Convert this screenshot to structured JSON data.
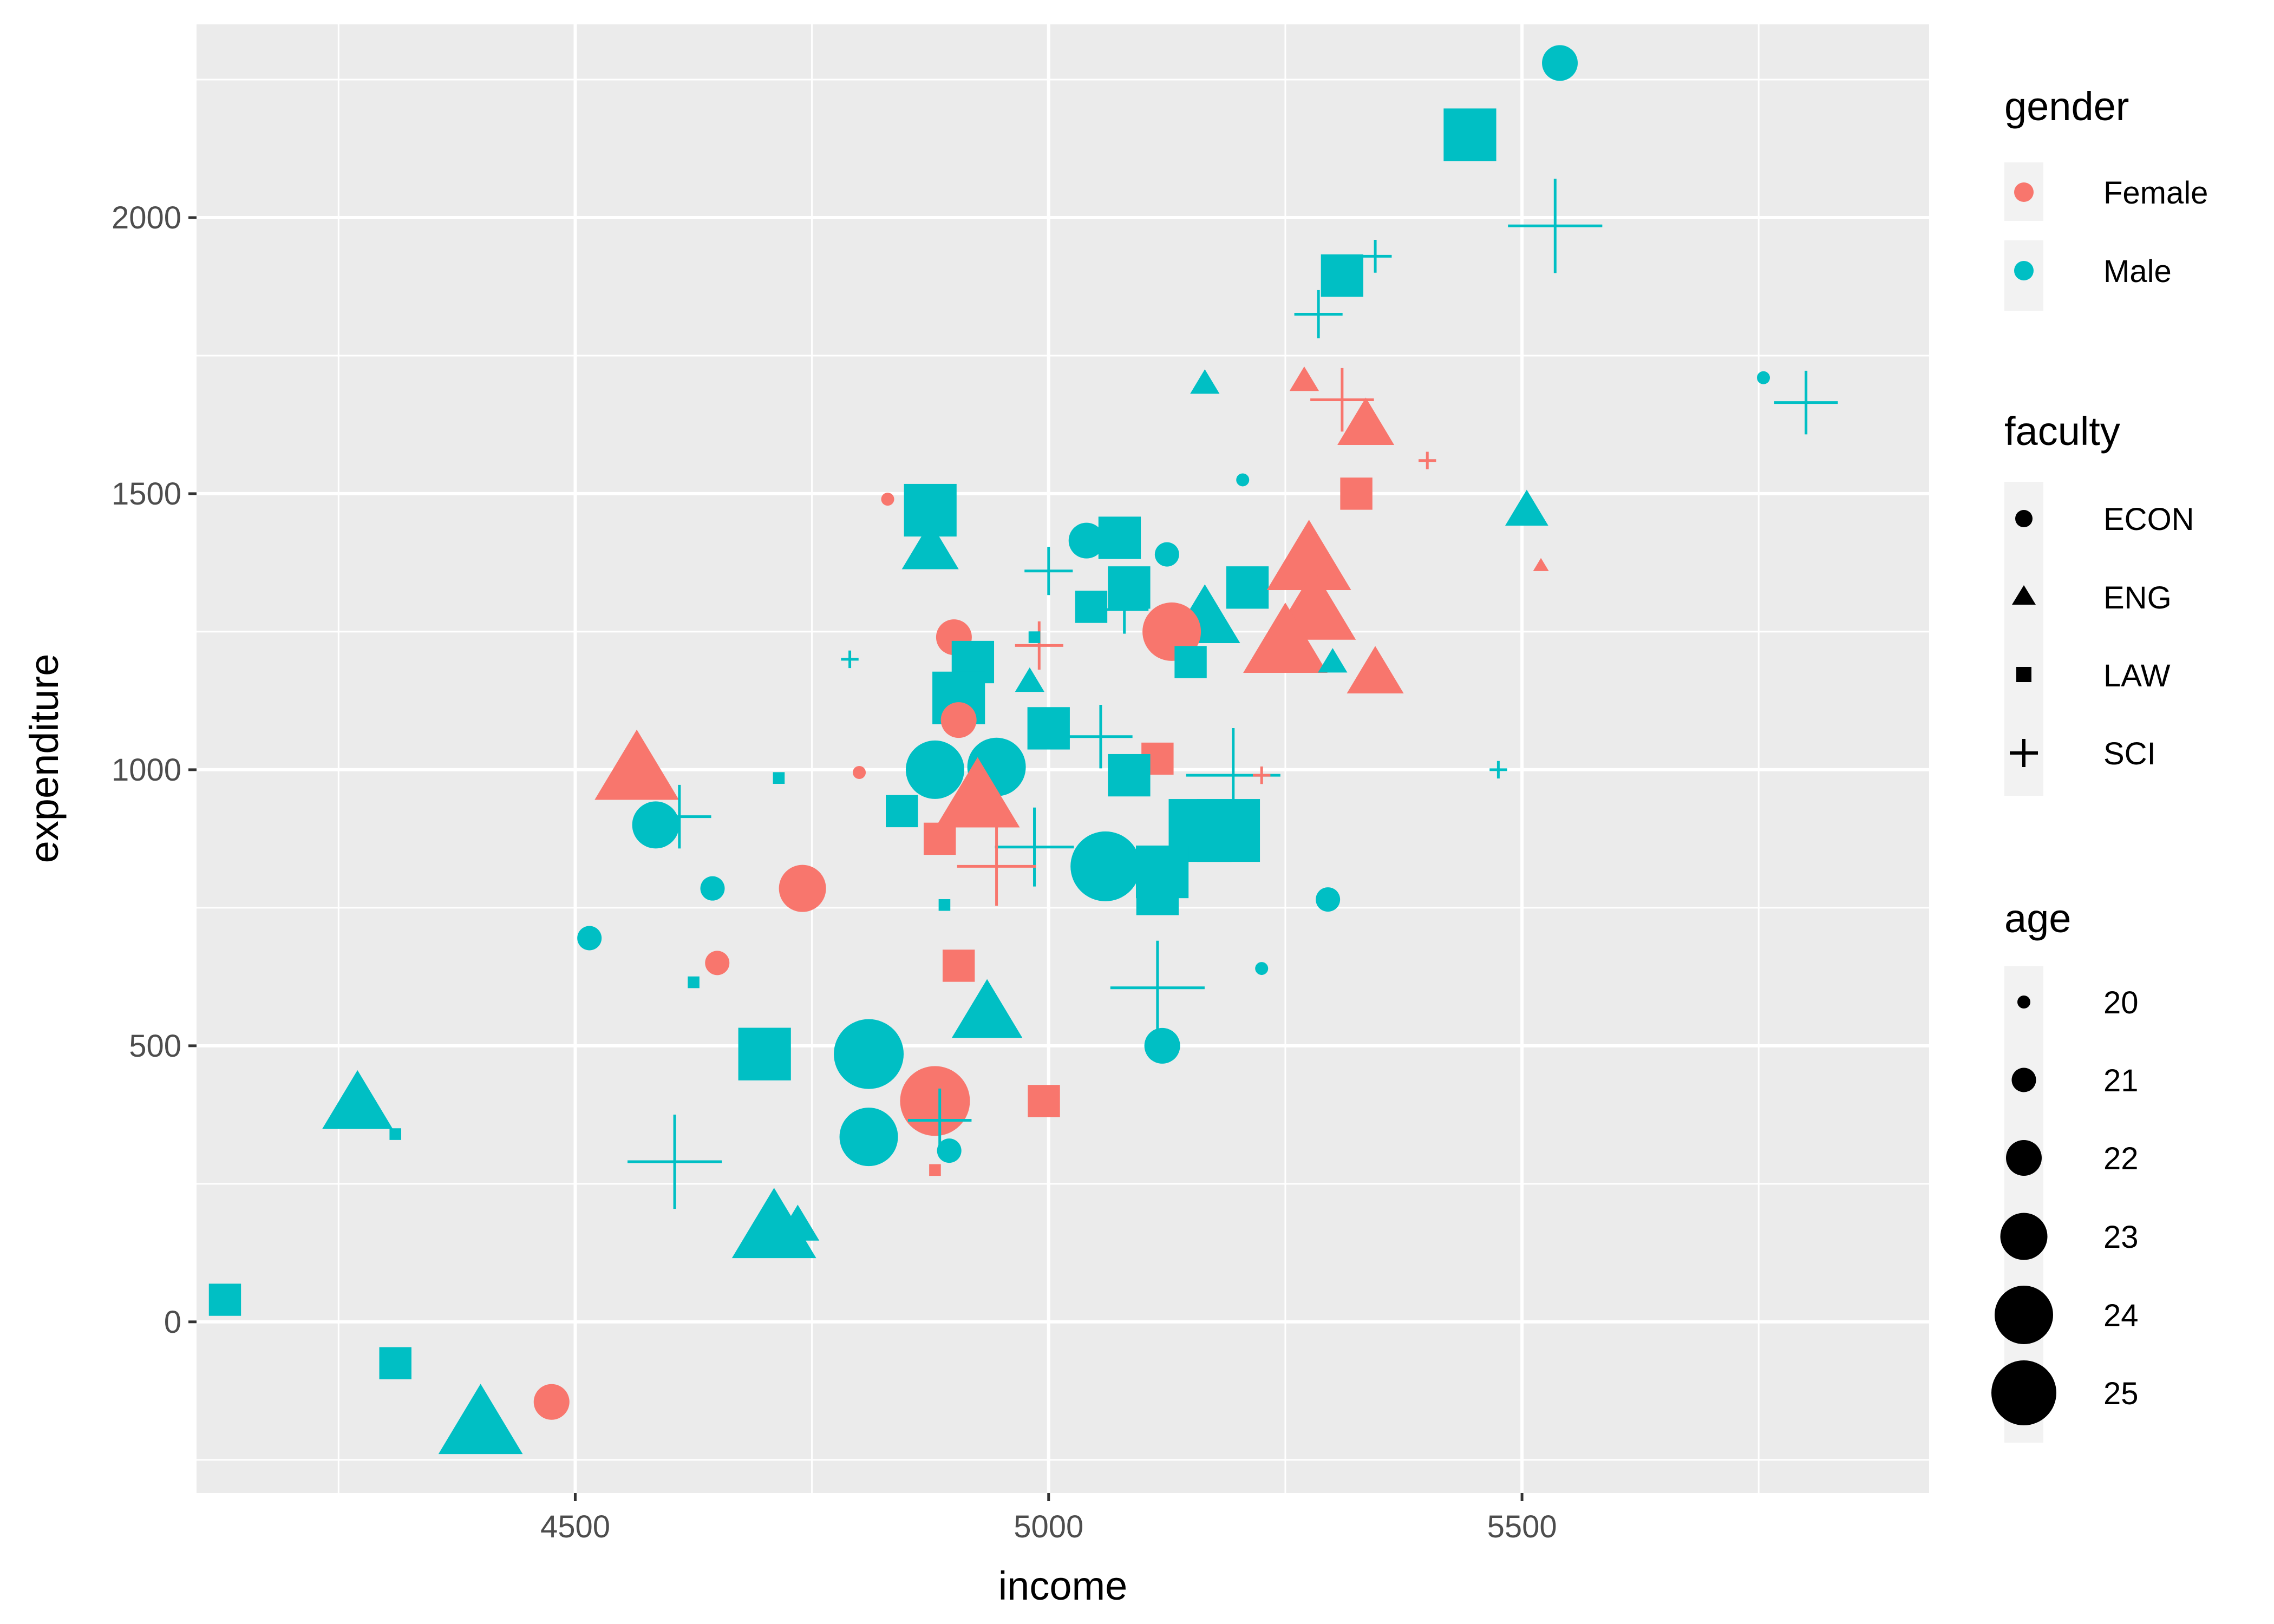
{
  "chart_data": {
    "type": "scatter",
    "title": "",
    "xlabel": "income",
    "ylabel": "expenditure",
    "xlim": [
      4100,
      5930
    ],
    "ylim": [
      -310,
      2350
    ],
    "x_ticks": [
      4500,
      5000,
      5500
    ],
    "y_ticks": [
      0,
      500,
      1000,
      1500,
      2000
    ],
    "x_tick_labels": [
      "4500",
      "5000",
      "5500"
    ],
    "y_tick_labels": [
      "0",
      "500",
      "1000",
      "1500",
      "2000"
    ],
    "grid": true,
    "legend_position": "right",
    "colors": {
      "Female": "#F8766D",
      "Male": "#00BFC4",
      "panel": "#EBEBEB",
      "grid": "#FFFFFF"
    },
    "legends": {
      "gender": {
        "title": "gender",
        "entries": [
          "Female",
          "Male"
        ]
      },
      "faculty": {
        "title": "faculty",
        "entries": [
          "ECON",
          "ENG",
          "LAW",
          "SCI"
        ]
      },
      "age": {
        "title": "age",
        "entries": [
          "20",
          "21",
          "22",
          "23",
          "24",
          "25"
        ]
      }
    },
    "shapes": {
      "ECON": "circle",
      "ENG": "triangle",
      "LAW": "square",
      "SCI": "plus"
    },
    "points": [
      {
        "x": 5540,
        "y": 2280,
        "gender": "Male",
        "faculty": "ECON",
        "age": 22
      },
      {
        "x": 5445,
        "y": 2150,
        "gender": "Male",
        "faculty": "LAW",
        "age": 24
      },
      {
        "x": 5535,
        "y": 1985,
        "gender": "Male",
        "faculty": "SCI",
        "age": 25
      },
      {
        "x": 5345,
        "y": 1930,
        "gender": "Male",
        "faculty": "SCI",
        "age": 21
      },
      {
        "x": 5310,
        "y": 1895,
        "gender": "Male",
        "faculty": "LAW",
        "age": 23
      },
      {
        "x": 5285,
        "y": 1825,
        "gender": "Male",
        "faculty": "SCI",
        "age": 22
      },
      {
        "x": 5165,
        "y": 1700,
        "gender": "Male",
        "faculty": "ENG",
        "age": 21
      },
      {
        "x": 5270,
        "y": 1705,
        "gender": "Female",
        "faculty": "ENG",
        "age": 21
      },
      {
        "x": 5310,
        "y": 1670,
        "gender": "Female",
        "faculty": "SCI",
        "age": 23
      },
      {
        "x": 5335,
        "y": 1625,
        "gender": "Female",
        "faculty": "ENG",
        "age": 23
      },
      {
        "x": 5400,
        "y": 1560,
        "gender": "Female",
        "faculty": "SCI",
        "age": 20
      },
      {
        "x": 5755,
        "y": 1710,
        "gender": "Male",
        "faculty": "ECON",
        "age": 20
      },
      {
        "x": 5800,
        "y": 1665,
        "gender": "Male",
        "faculty": "SCI",
        "age": 23
      },
      {
        "x": 5205,
        "y": 1525,
        "gender": "Male",
        "faculty": "ECON",
        "age": 20
      },
      {
        "x": 5325,
        "y": 1500,
        "gender": "Female",
        "faculty": "LAW",
        "age": 22
      },
      {
        "x": 5505,
        "y": 1470,
        "gender": "Male",
        "faculty": "ENG",
        "age": 22
      },
      {
        "x": 5520,
        "y": 1370,
        "gender": "Female",
        "faculty": "ENG",
        "age": 20
      },
      {
        "x": 4830,
        "y": 1490,
        "gender": "Female",
        "faculty": "ECON",
        "age": 20
      },
      {
        "x": 4875,
        "y": 1470,
        "gender": "Male",
        "faculty": "LAW",
        "age": 24
      },
      {
        "x": 4875,
        "y": 1400,
        "gender": "Male",
        "faculty": "ENG",
        "age": 23
      },
      {
        "x": 5040,
        "y": 1415,
        "gender": "Male",
        "faculty": "ECON",
        "age": 22
      },
      {
        "x": 5075,
        "y": 1420,
        "gender": "Male",
        "faculty": "LAW",
        "age": 23
      },
      {
        "x": 5125,
        "y": 1390,
        "gender": "Male",
        "faculty": "ECON",
        "age": 21
      },
      {
        "x": 5000,
        "y": 1360,
        "gender": "Male",
        "faculty": "SCI",
        "age": 22
      },
      {
        "x": 5085,
        "y": 1330,
        "gender": "Male",
        "faculty": "LAW",
        "age": 23
      },
      {
        "x": 5210,
        "y": 1330,
        "gender": "Male",
        "faculty": "LAW",
        "age": 23
      },
      {
        "x": 5275,
        "y": 1380,
        "gender": "Female",
        "faculty": "ENG",
        "age": 25
      },
      {
        "x": 5045,
        "y": 1295,
        "gender": "Male",
        "faculty": "LAW",
        "age": 22
      },
      {
        "x": 5080,
        "y": 1290,
        "gender": "Male",
        "faculty": "SCI",
        "age": 22
      },
      {
        "x": 5165,
        "y": 1275,
        "gender": "Male",
        "faculty": "ENG",
        "age": 24
      },
      {
        "x": 5280,
        "y": 1290,
        "gender": "Female",
        "faculty": "ENG",
        "age": 25
      },
      {
        "x": 5130,
        "y": 1250,
        "gender": "Female",
        "faculty": "ECON",
        "age": 24
      },
      {
        "x": 4900,
        "y": 1240,
        "gender": "Female",
        "faculty": "ECON",
        "age": 22
      },
      {
        "x": 4920,
        "y": 1195,
        "gender": "Male",
        "faculty": "LAW",
        "age": 23
      },
      {
        "x": 4990,
        "y": 1225,
        "gender": "Female",
        "faculty": "SCI",
        "age": 22
      },
      {
        "x": 4985,
        "y": 1240,
        "gender": "Male",
        "faculty": "LAW",
        "age": 20
      },
      {
        "x": 5150,
        "y": 1195,
        "gender": "Male",
        "faculty": "LAW",
        "age": 22
      },
      {
        "x": 5250,
        "y": 1230,
        "gender": "Female",
        "faculty": "ENG",
        "age": 25
      },
      {
        "x": 5300,
        "y": 1195,
        "gender": "Male",
        "faculty": "ENG",
        "age": 21
      },
      {
        "x": 5345,
        "y": 1175,
        "gender": "Female",
        "faculty": "ENG",
        "age": 23
      },
      {
        "x": 4980,
        "y": 1160,
        "gender": "Male",
        "faculty": "ENG",
        "age": 21
      },
      {
        "x": 4905,
        "y": 1130,
        "gender": "Male",
        "faculty": "LAW",
        "age": 24
      },
      {
        "x": 4790,
        "y": 1200,
        "gender": "Male",
        "faculty": "SCI",
        "age": 20
      },
      {
        "x": 4905,
        "y": 1090,
        "gender": "Female",
        "faculty": "ECON",
        "age": 22
      },
      {
        "x": 5000,
        "y": 1075,
        "gender": "Male",
        "faculty": "LAW",
        "age": 23
      },
      {
        "x": 5055,
        "y": 1060,
        "gender": "Male",
        "faculty": "SCI",
        "age": 23
      },
      {
        "x": 4880,
        "y": 1000,
        "gender": "Male",
        "faculty": "ECON",
        "age": 24
      },
      {
        "x": 4945,
        "y": 1005,
        "gender": "Male",
        "faculty": "ECON",
        "age": 24
      },
      {
        "x": 4800,
        "y": 995,
        "gender": "Female",
        "faculty": "ECON",
        "age": 20
      },
      {
        "x": 4715,
        "y": 985,
        "gender": "Male",
        "faculty": "LAW",
        "age": 20
      },
      {
        "x": 4565,
        "y": 1000,
        "gender": "Female",
        "faculty": "ENG",
        "age": 25
      },
      {
        "x": 4610,
        "y": 915,
        "gender": "Male",
        "faculty": "SCI",
        "age": 23
      },
      {
        "x": 4585,
        "y": 900,
        "gender": "Male",
        "faculty": "ECON",
        "age": 23
      },
      {
        "x": 5115,
        "y": 1020,
        "gender": "Female",
        "faculty": "LAW",
        "age": 22
      },
      {
        "x": 5085,
        "y": 990,
        "gender": "Male",
        "faculty": "LAW",
        "age": 23
      },
      {
        "x": 5195,
        "y": 990,
        "gender": "Male",
        "faculty": "SCI",
        "age": 25
      },
      {
        "x": 5225,
        "y": 990,
        "gender": "Female",
        "faculty": "SCI",
        "age": 20
      },
      {
        "x": 5475,
        "y": 1000,
        "gender": "Male",
        "faculty": "SCI",
        "age": 20
      },
      {
        "x": 4925,
        "y": 950,
        "gender": "Female",
        "faculty": "ENG",
        "age": 25
      },
      {
        "x": 4845,
        "y": 925,
        "gender": "Male",
        "faculty": "LAW",
        "age": 22
      },
      {
        "x": 5160,
        "y": 890,
        "gender": "Male",
        "faculty": "LAW",
        "age": 25
      },
      {
        "x": 5190,
        "y": 890,
        "gender": "Male",
        "faculty": "LAW",
        "age": 25
      },
      {
        "x": 4885,
        "y": 875,
        "gender": "Female",
        "faculty": "LAW",
        "age": 22
      },
      {
        "x": 4985,
        "y": 860,
        "gender": "Male",
        "faculty": "SCI",
        "age": 24
      },
      {
        "x": 4945,
        "y": 825,
        "gender": "Female",
        "faculty": "SCI",
        "age": 24
      },
      {
        "x": 5060,
        "y": 825,
        "gender": "Male",
        "faculty": "ECON",
        "age": 25
      },
      {
        "x": 5120,
        "y": 815,
        "gender": "Male",
        "faculty": "LAW",
        "age": 24
      },
      {
        "x": 4740,
        "y": 785,
        "gender": "Female",
        "faculty": "ECON",
        "age": 23
      },
      {
        "x": 4645,
        "y": 785,
        "gender": "Male",
        "faculty": "ECON",
        "age": 21
      },
      {
        "x": 5295,
        "y": 765,
        "gender": "Male",
        "faculty": "ECON",
        "age": 21
      },
      {
        "x": 5115,
        "y": 775,
        "gender": "Male",
        "faculty": "LAW",
        "age": 23
      },
      {
        "x": 4890,
        "y": 755,
        "gender": "Male",
        "faculty": "LAW",
        "age": 20
      },
      {
        "x": 4515,
        "y": 695,
        "gender": "Male",
        "faculty": "ECON",
        "age": 21
      },
      {
        "x": 4650,
        "y": 650,
        "gender": "Female",
        "faculty": "ECON",
        "age": 21
      },
      {
        "x": 4905,
        "y": 645,
        "gender": "Female",
        "faculty": "LAW",
        "age": 22
      },
      {
        "x": 5225,
        "y": 640,
        "gender": "Male",
        "faculty": "ECON",
        "age": 20
      },
      {
        "x": 4625,
        "y": 615,
        "gender": "Male",
        "faculty": "LAW",
        "age": 20
      },
      {
        "x": 5115,
        "y": 605,
        "gender": "Male",
        "faculty": "SCI",
        "age": 25
      },
      {
        "x": 4935,
        "y": 560,
        "gender": "Male",
        "faculty": "ENG",
        "age": 24
      },
      {
        "x": 5120,
        "y": 500,
        "gender": "Male",
        "faculty": "ECON",
        "age": 22
      },
      {
        "x": 4700,
        "y": 485,
        "gender": "Male",
        "faculty": "LAW",
        "age": 24
      },
      {
        "x": 4810,
        "y": 485,
        "gender": "Male",
        "faculty": "ECON",
        "age": 25
      },
      {
        "x": 4880,
        "y": 400,
        "gender": "Female",
        "faculty": "ECON",
        "age": 25
      },
      {
        "x": 4995,
        "y": 400,
        "gender": "Female",
        "faculty": "LAW",
        "age": 22
      },
      {
        "x": 4270,
        "y": 395,
        "gender": "Male",
        "faculty": "ENG",
        "age": 24
      },
      {
        "x": 4310,
        "y": 340,
        "gender": "Male",
        "faculty": "LAW",
        "age": 20
      },
      {
        "x": 4810,
        "y": 335,
        "gender": "Male",
        "faculty": "ECON",
        "age": 24
      },
      {
        "x": 4885,
        "y": 365,
        "gender": "Male",
        "faculty": "SCI",
        "age": 23
      },
      {
        "x": 4895,
        "y": 310,
        "gender": "Male",
        "faculty": "ECON",
        "age": 21
      },
      {
        "x": 4605,
        "y": 290,
        "gender": "Male",
        "faculty": "SCI",
        "age": 25
      },
      {
        "x": 4880,
        "y": 275,
        "gender": "Female",
        "faculty": "LAW",
        "age": 20
      },
      {
        "x": 4710,
        "y": 170,
        "gender": "Male",
        "faculty": "ENG",
        "age": 25
      },
      {
        "x": 4735,
        "y": 175,
        "gender": "Male",
        "faculty": "ENG",
        "age": 22
      },
      {
        "x": 4130,
        "y": 40,
        "gender": "Male",
        "faculty": "LAW",
        "age": 22
      },
      {
        "x": 4310,
        "y": -75,
        "gender": "Male",
        "faculty": "LAW",
        "age": 22
      },
      {
        "x": 4400,
        "y": -185,
        "gender": "Male",
        "faculty": "ENG",
        "age": 25
      },
      {
        "x": 4475,
        "y": -145,
        "gender": "Female",
        "faculty": "ECON",
        "age": 22
      }
    ]
  }
}
